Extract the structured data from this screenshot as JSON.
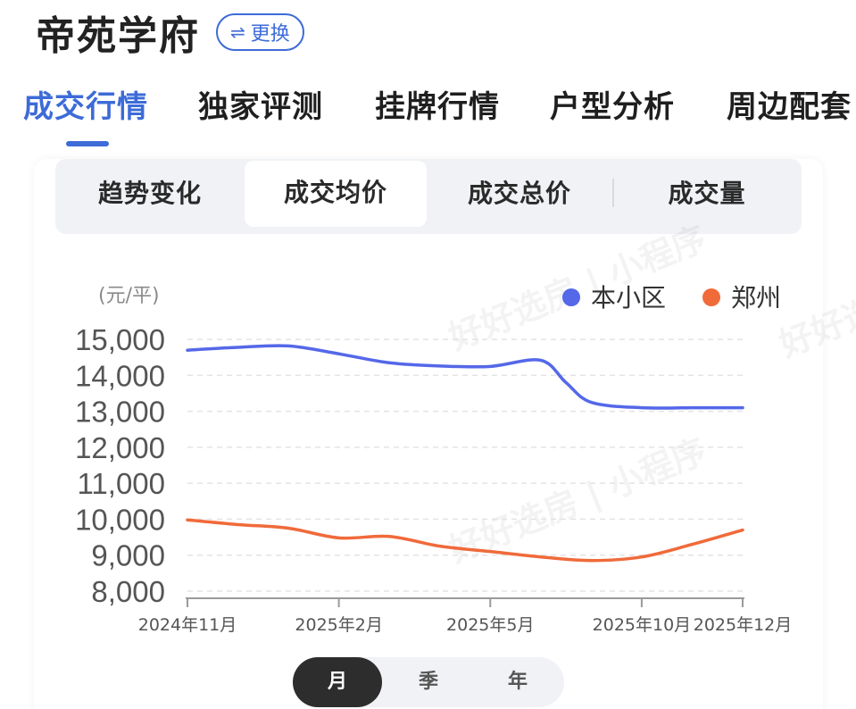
{
  "header": {
    "title": "帝苑学府",
    "switch_label": "更换",
    "switch_icon": "swap-arrows-icon"
  },
  "tabs": [
    {
      "label": "成交行情",
      "active": true
    },
    {
      "label": "独家评测",
      "active": false
    },
    {
      "label": "挂牌行情",
      "active": false
    },
    {
      "label": "户型分析",
      "active": false
    },
    {
      "label": "周边配套",
      "active": false
    }
  ],
  "subtabs": [
    {
      "label": "趋势变化",
      "active": false
    },
    {
      "label": "成交均价",
      "active": true
    },
    {
      "label": "成交总价",
      "active": false
    },
    {
      "label": "成交量",
      "active": false
    }
  ],
  "watermark": "好好选房 | 小程序",
  "period": [
    {
      "label": "月",
      "active": true
    },
    {
      "label": "季",
      "active": false
    },
    {
      "label": "年",
      "active": false
    }
  ],
  "chart_data": {
    "type": "line",
    "unit_label": "(元/平)",
    "ylim": [
      7800,
      15500
    ],
    "yticks": [
      15000,
      14000,
      13000,
      12000,
      11000,
      10000,
      9000,
      8000
    ],
    "ytick_labels": [
      "15,000",
      "14,000",
      "13,000",
      "12,000",
      "11,000",
      "10,000",
      "9,000",
      "8,000"
    ],
    "xlim": [
      0,
      13.3
    ],
    "xticks": [
      {
        "x": 0,
        "label": "2024年11月"
      },
      {
        "x": 3,
        "label": "2025年2月"
      },
      {
        "x": 6,
        "label": "2025年5月"
      },
      {
        "x": 9,
        "label": "2025年10月"
      },
      {
        "x": 11,
        "label": "2025年12月"
      }
    ],
    "legend_position": "top-right",
    "grid": true,
    "series": [
      {
        "name": "本小区",
        "color": "#5468e8",
        "points": [
          [
            0,
            14700
          ],
          [
            1,
            14780
          ],
          [
            2,
            14820
          ],
          [
            3,
            14600
          ],
          [
            4,
            14350
          ],
          [
            5,
            14260
          ],
          [
            6,
            14250
          ],
          [
            7,
            14420
          ],
          [
            7.5,
            13800
          ],
          [
            8,
            13250
          ],
          [
            9,
            13100
          ],
          [
            10,
            13100
          ],
          [
            11,
            13100
          ]
        ]
      },
      {
        "name": "郑州",
        "color": "#f06a3a",
        "points": [
          [
            0,
            9980
          ],
          [
            1,
            9850
          ],
          [
            2,
            9750
          ],
          [
            3,
            9480
          ],
          [
            4,
            9520
          ],
          [
            5,
            9250
          ],
          [
            6,
            9100
          ],
          [
            7,
            8950
          ],
          [
            8,
            8850
          ],
          [
            9,
            8950
          ],
          [
            10,
            9300
          ],
          [
            11,
            9700
          ]
        ]
      }
    ]
  }
}
